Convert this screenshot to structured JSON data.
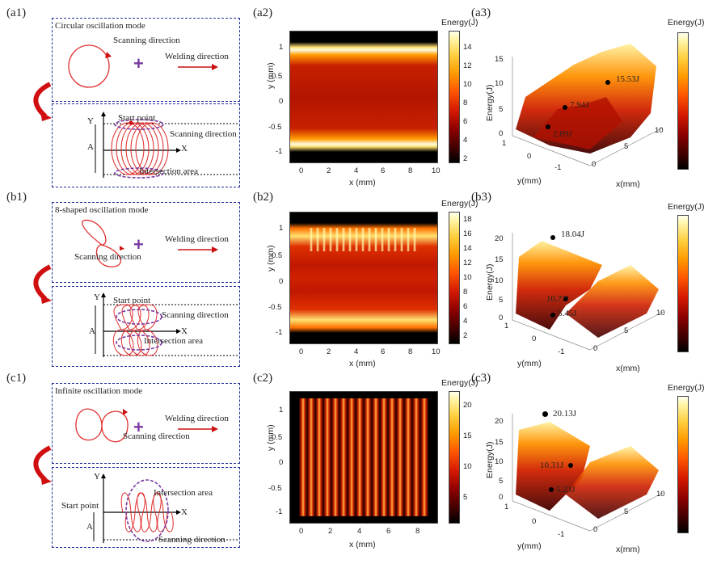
{
  "panels": {
    "a1": "(a1)",
    "a2": "(a2)",
    "a3": "(a3)",
    "b1": "(b1)",
    "b2": "(b2)",
    "b3": "(b3)",
    "c1": "(c1)",
    "c2": "(c2)",
    "c3": "(c3)"
  },
  "row_a": {
    "mode": "Circular oscillation mode",
    "scanning": "Scanning direction",
    "welding": "Welding direction",
    "start": "Start point",
    "scanning2": "Scanning direction",
    "intersection": "Intersection area",
    "Y": "Y",
    "X": "X",
    "A": "A",
    "cbar_ticks": [
      "2",
      "4",
      "6",
      "8",
      "10",
      "12",
      "14"
    ],
    "yticks": [
      "1",
      "0.5",
      "0",
      "-0.5",
      "-1"
    ],
    "xticks": [
      "0",
      "2",
      "4",
      "6",
      "8",
      "10"
    ],
    "surf_zticks": [
      "15",
      "10",
      "5",
      "0"
    ],
    "surf_y": [
      "1",
      "0",
      "-1"
    ],
    "surf_x": [
      "0",
      "5",
      "10"
    ],
    "ann": [
      "15.53J",
      "7.94J",
      "2.??J"
    ],
    "ann_full": [
      "15.53J",
      "7.94J",
      "2.89J"
    ]
  },
  "row_b": {
    "mode": "8-shaped oscillation mode",
    "scanning": "Scanning direction",
    "welding": "Welding direction",
    "start": "Start point",
    "scanning2": "Scanning direction",
    "intersection": "Intersection area",
    "Y": "Y",
    "X": "X",
    "A": "A",
    "cbar_ticks": [
      "2",
      "4",
      "6",
      "8",
      "10",
      "12",
      "14",
      "16",
      "18"
    ],
    "yticks": [
      "1",
      "0.5",
      "0",
      "-0.5",
      "-1"
    ],
    "xticks": [
      "0",
      "2",
      "4",
      "6",
      "8",
      "10"
    ],
    "surf_zticks": [
      "20",
      "15",
      "10",
      "5",
      "0"
    ],
    "surf_y": [
      "1",
      "0",
      "-1"
    ],
    "surf_x": [
      "0",
      "5",
      "10"
    ],
    "ann": [
      "18.04J",
      "10.??J",
      "5.45J"
    ]
  },
  "row_c": {
    "mode": "Infinite oscillation mode",
    "scanning": "Scanning direction",
    "welding": "Welding direction",
    "start": "Start point",
    "scanning2": "Scanning direction",
    "intersection": "Intersection area",
    "Y": "Y",
    "X": "X",
    "A": "A",
    "cbar_ticks": [
      "5",
      "10",
      "15",
      "20"
    ],
    "yticks": [
      "1",
      "0.5",
      "0",
      "-0.5",
      "-1"
    ],
    "xticks": [
      "0",
      "2",
      "4",
      "6",
      "8"
    ],
    "surf_zticks": [
      "20",
      "15",
      "10",
      "5",
      "0"
    ],
    "surf_y": [
      "1",
      "0",
      "-1"
    ],
    "surf_x": [
      "0",
      "5",
      "10"
    ],
    "ann": [
      "20.13J",
      "10.31J",
      "5.23J"
    ]
  },
  "axes": {
    "energy": "Energy(J)",
    "ymm": "y (mm)",
    "xmm": "x (mm)",
    "energy_z": "Energy(J)",
    "surf_ylabel": "y(mm)",
    "surf_xlabel": "x(mm)"
  },
  "colors": {
    "frame": "#1f2f9a",
    "path": "#e03030",
    "arrow": "#cc1010",
    "dashed_ellipse": "#7a3aa0"
  }
}
